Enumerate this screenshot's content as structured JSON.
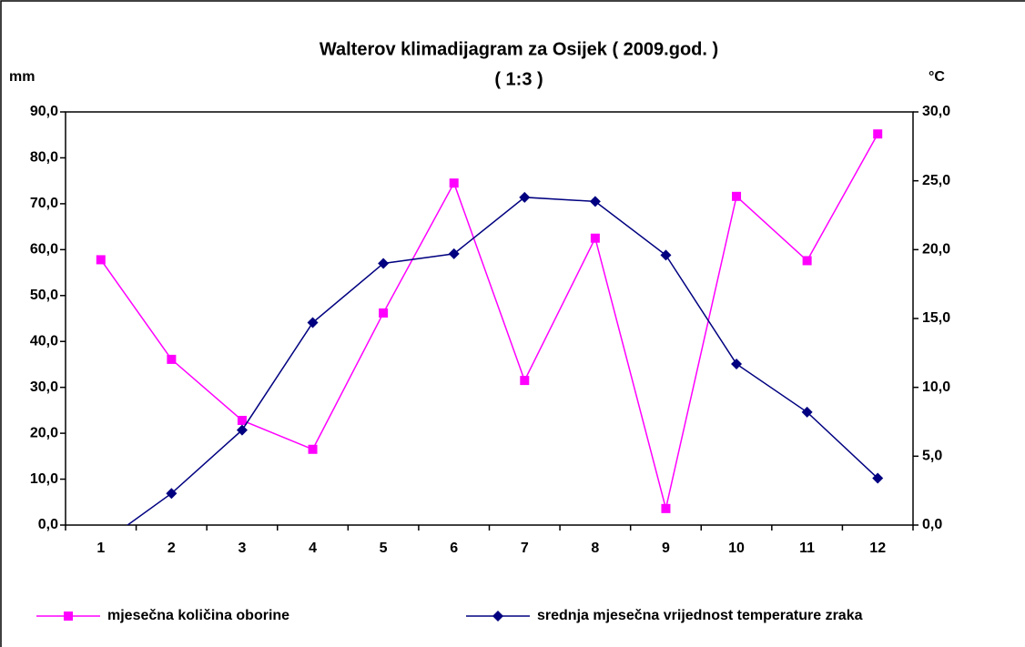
{
  "chart_data": {
    "type": "line",
    "title": "Walterov klimadijagram za Osijek ( 2009.god. )",
    "subtitle": "( 1:3 )",
    "ylabel": "mm",
    "y2label": "°C",
    "categories": [
      "1",
      "2",
      "3",
      "4",
      "5",
      "6",
      "7",
      "8",
      "9",
      "10",
      "11",
      "12"
    ],
    "ylim": [
      0,
      90
    ],
    "yticks": [
      {
        "value": 0,
        "label": "0,0"
      },
      {
        "value": 10,
        "label": "10,0"
      },
      {
        "value": 20,
        "label": "20,0"
      },
      {
        "value": 30,
        "label": "30,0"
      },
      {
        "value": 40,
        "label": "40,0"
      },
      {
        "value": 50,
        "label": "50,0"
      },
      {
        "value": 60,
        "label": "60,0"
      },
      {
        "value": 70,
        "label": "70,0"
      },
      {
        "value": 80,
        "label": "80,0"
      },
      {
        "value": 90,
        "label": "90,0"
      }
    ],
    "y2lim": [
      0,
      30
    ],
    "y2ticks": [
      {
        "value": 0,
        "label": "0,0"
      },
      {
        "value": 5,
        "label": "5,0"
      },
      {
        "value": 10,
        "label": "10,0"
      },
      {
        "value": 15,
        "label": "15,0"
      },
      {
        "value": 20,
        "label": "20,0"
      },
      {
        "value": 25,
        "label": "25,0"
      },
      {
        "value": 30,
        "label": "30,0"
      }
    ],
    "grid": false,
    "legend": "bottom",
    "series": [
      {
        "name": "mjesečna količina oborine",
        "color": "#ff00ff",
        "marker": "square",
        "values": [
          57.8,
          36.1,
          22.8,
          16.5,
          46.2,
          74.5,
          31.5,
          62.5,
          3.6,
          71.6,
          57.6,
          85.2
        ]
      },
      {
        "name": "srednja mjesečna vrijednost temperature zraka",
        "color": "#000080",
        "marker": "diamond",
        "axis": "y2",
        "values": [
          -1.4,
          2.3,
          6.9,
          14.7,
          19.0,
          19.7,
          23.8,
          23.5,
          19.6,
          11.7,
          8.2,
          3.4
        ]
      }
    ]
  }
}
